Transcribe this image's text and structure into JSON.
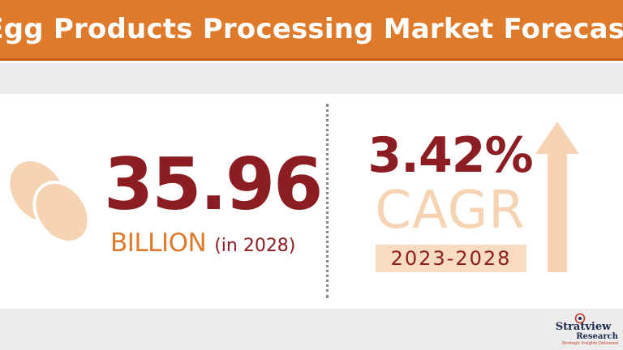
{
  "header": {
    "title": "Egg Products Processing Market Forecast"
  },
  "market_size": {
    "value": "35.96",
    "unit": "BILLION",
    "year_note": "(in 2028)"
  },
  "growth": {
    "value": "3.42%",
    "label": "CAGR",
    "period": "2023-2028"
  },
  "logo": {
    "brand": "Stratview",
    "sub": "Research",
    "tagline": "Strategic Insights Delivered"
  },
  "colors": {
    "header_bg": "#e07a2b",
    "primary_dark_red": "#8c1d22",
    "accent_orange": "#e07a2b",
    "light_peach": "#f6d3b2",
    "band_gray": "#ececec"
  },
  "icons": {
    "eggs": "eggs-icon",
    "arrow": "up-arrow-icon",
    "logo_mark": "logo-mark-icon"
  }
}
